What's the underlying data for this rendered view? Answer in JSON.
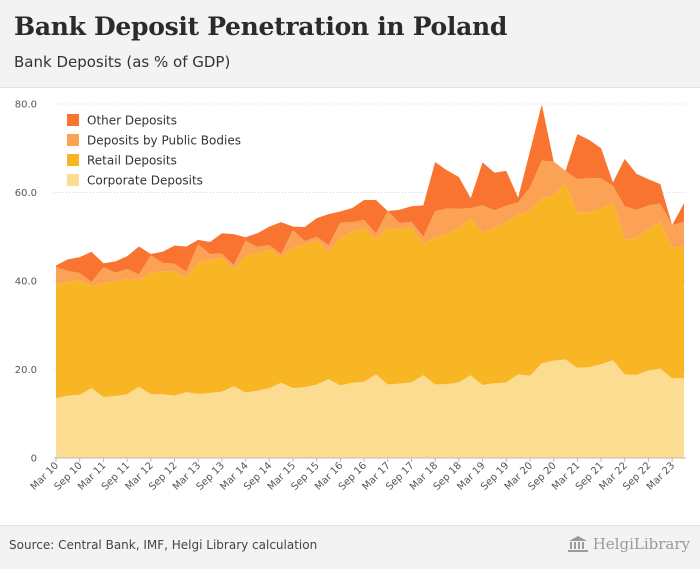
{
  "header": {
    "title": "Bank Deposit Penetration in Poland",
    "subtitle": "Bank Deposits (as % of GDP)"
  },
  "footer": {
    "source": "Source: Central Bank, IMF, Helgi Library calculation",
    "brand": "HelgiLibrary"
  },
  "colors": {
    "Other Deposits": "#f97430",
    "Deposits by Public Bodies": "#fba254",
    "Retail Deposits": "#f8b625",
    "Corporate Deposits": "#fcdc91"
  },
  "chart_data": {
    "type": "area",
    "stacked": true,
    "title": "",
    "xlabel": "",
    "ylabel": "",
    "ylim": [
      0,
      80
    ],
    "yticks": [
      "0",
      "20.0",
      "40.0",
      "60.0",
      "80.0"
    ],
    "grid": true,
    "legend_position": "top-left",
    "x_tick_labels": [
      "Mar 10",
      "Sep 10",
      "Mar 11",
      "Sep 11",
      "Mar 12",
      "Sep 12",
      "Mar 13",
      "Sep 13",
      "Mar 14",
      "Sep 14",
      "Mar 15",
      "Sep 15",
      "Mar 16",
      "Sep 16",
      "Mar 17",
      "Sep 17",
      "Mar 18",
      "Sep 18",
      "Mar 19",
      "Sep 19",
      "Mar 20",
      "Sep 20",
      "Mar 21",
      "Sep 21",
      "Mar 22",
      "Sep 22",
      "Mar 23"
    ],
    "x": [
      "Mar 10",
      "Jun 10",
      "Sep 10",
      "Dec 10",
      "Mar 11",
      "Jun 11",
      "Sep 11",
      "Dec 11",
      "Mar 12",
      "Jun 12",
      "Sep 12",
      "Dec 12",
      "Mar 13",
      "Jun 13",
      "Sep 13",
      "Dec 13",
      "Mar 14",
      "Jun 14",
      "Sep 14",
      "Dec 14",
      "Mar 15",
      "Jun 15",
      "Sep 15",
      "Dec 15",
      "Mar 16",
      "Jun 16",
      "Sep 16",
      "Dec 16",
      "Mar 17",
      "Jun 17",
      "Sep 17",
      "Dec 17",
      "Mar 18",
      "Jun 18",
      "Sep 18",
      "Dec 18",
      "Mar 19",
      "Jun 19",
      "Sep 19",
      "Dec 19",
      "Mar 20",
      "Jun 20",
      "Sep 20",
      "Dec 20",
      "Mar 21",
      "Jun 21",
      "Sep 21",
      "Dec 21",
      "Mar 22",
      "Jun 22",
      "Sep 22",
      "Dec 22",
      "Mar 23",
      "Jun 23"
    ],
    "series": [
      {
        "name": "Corporate Deposits",
        "values": [
          13.5,
          14.1,
          14.3,
          15.8,
          13.8,
          14.0,
          14.4,
          16.1,
          14.4,
          14.4,
          14.1,
          14.9,
          14.5,
          14.7,
          15.0,
          16.2,
          14.8,
          15.2,
          15.8,
          17.0,
          15.8,
          16.0,
          16.6,
          17.8,
          16.4,
          17.0,
          17.2,
          18.9,
          16.6,
          16.8,
          17.1,
          18.7,
          16.6,
          16.7,
          17.1,
          18.7,
          16.5,
          16.9,
          17.1,
          18.9,
          18.6,
          21.4,
          22.0,
          22.3,
          20.4,
          20.5,
          21.2,
          22.1,
          18.9,
          18.8,
          19.8,
          20.2,
          18.0,
          18.1
        ],
        "cumulative": [
          13.5,
          14.1,
          14.3,
          15.8,
          13.8,
          14.0,
          14.4,
          16.1,
          14.4,
          14.4,
          14.1,
          14.9,
          14.5,
          14.7,
          15.0,
          16.2,
          14.8,
          15.2,
          15.8,
          17.0,
          15.8,
          16.0,
          16.6,
          17.8,
          16.4,
          17.0,
          17.2,
          18.9,
          16.6,
          16.8,
          17.1,
          18.7,
          16.6,
          16.7,
          17.1,
          18.7,
          16.5,
          16.9,
          17.1,
          18.9,
          18.6,
          21.4,
          22.0,
          22.3,
          20.4,
          20.5,
          21.2,
          22.1,
          18.9,
          18.8,
          19.8,
          20.2,
          18.0,
          18.1
        ]
      },
      {
        "name": "Retail Deposits",
        "values": [
          25.6,
          25.8,
          25.9,
          23.0,
          25.7,
          25.9,
          26.0,
          24.1,
          27.5,
          27.8,
          28.0,
          25.9,
          29.6,
          30.0,
          30.4,
          26.4,
          30.8,
          31.1,
          31.4,
          28.4,
          31.7,
          32.2,
          32.6,
          28.7,
          33.4,
          34.1,
          34.8,
          30.5,
          35.4,
          35.0,
          35.1,
          29.7,
          33.1,
          34.0,
          35.0,
          35.4,
          34.4,
          35.1,
          36.3,
          36.1,
          37.3,
          37.2,
          37.4,
          39.8,
          35.1,
          35.0,
          35.2,
          35.6,
          30.5,
          30.9,
          31.9,
          33.1,
          29.6,
          29.7
        ],
        "cumulative": [
          39.1,
          39.9,
          40.2,
          38.8,
          39.5,
          39.9,
          40.4,
          40.2,
          41.9,
          42.2,
          42.1,
          40.8,
          44.1,
          44.7,
          45.4,
          42.6,
          45.6,
          46.3,
          47.2,
          45.4,
          47.5,
          48.2,
          49.2,
          46.5,
          49.8,
          51.1,
          52.0,
          49.4,
          52.0,
          51.8,
          52.2,
          48.4,
          49.7,
          50.7,
          52.1,
          54.1,
          50.9,
          52.0,
          53.4,
          55.0,
          55.9,
          58.6,
          59.4,
          62.1,
          55.5,
          55.5,
          56.4,
          57.7,
          49.4,
          49.7,
          51.7,
          53.3,
          47.6,
          47.8
        ]
      },
      {
        "name": "Deposits by Public Bodies",
        "values": [
          4.1,
          2.4,
          1.6,
          1.0,
          3.6,
          2.0,
          2.3,
          1.3,
          3.9,
          1.9,
          1.8,
          1.3,
          4.2,
          1.4,
          0.8,
          1.0,
          3.5,
          1.4,
          0.9,
          0.7,
          4.0,
          0.8,
          0.8,
          1.6,
          3.4,
          2.2,
          1.8,
          1.3,
          3.8,
          1.3,
          1.2,
          1.6,
          6.1,
          5.7,
          4.2,
          2.4,
          6.2,
          4.0,
          3.6,
          2.8,
          5.2,
          8.6,
          7.6,
          2.8,
          7.5,
          7.8,
          6.8,
          3.8,
          7.5,
          6.4,
          5.4,
          4.2,
          5.0,
          5.6
        ],
        "cumulative": [
          43.2,
          42.3,
          41.8,
          39.8,
          43.1,
          41.9,
          42.7,
          41.5,
          45.8,
          44.1,
          43.9,
          42.1,
          48.3,
          46.1,
          46.2,
          43.6,
          49.1,
          47.7,
          48.1,
          46.1,
          51.5,
          49.0,
          50.0,
          48.1,
          53.2,
          53.3,
          53.8,
          50.7,
          55.8,
          53.1,
          53.4,
          50.0,
          55.8,
          56.4,
          56.3,
          56.5,
          57.1,
          56.0,
          57.0,
          57.8,
          61.1,
          67.2,
          67.0,
          64.9,
          63.0,
          63.3,
          63.2,
          61.5,
          56.9,
          56.1,
          57.1,
          57.5,
          52.6,
          53.4
        ]
      },
      {
        "name": "Other Deposits",
        "values": [
          0.3,
          2.6,
          3.6,
          6.8,
          0.9,
          2.5,
          2.9,
          6.3,
          0.3,
          2.5,
          4.1,
          5.7,
          1.0,
          2.7,
          4.6,
          7.0,
          0.8,
          3.1,
          4.2,
          7.2,
          0.8,
          3.2,
          4.2,
          7.0,
          2.5,
          3.2,
          4.5,
          7.6,
          0.0,
          3.0,
          3.5,
          7.1,
          11.1,
          8.6,
          7.2,
          2.2,
          9.7,
          8.5,
          7.9,
          1.0,
          8.2,
          12.7,
          0.0,
          0.0,
          10.2,
          8.6,
          6.8,
          0.8,
          10.7,
          8.1,
          5.9,
          4.4,
          0.0,
          4.2
        ],
        "cumulative": [
          43.5,
          44.9,
          45.4,
          46.6,
          44.0,
          44.4,
          45.6,
          47.8,
          46.1,
          46.6,
          48.0,
          47.8,
          49.3,
          48.8,
          50.8,
          50.6,
          49.9,
          50.8,
          52.3,
          53.3,
          52.3,
          52.2,
          54.2,
          55.1,
          55.7,
          56.5,
          58.3,
          58.3,
          55.8,
          56.1,
          56.9,
          57.1,
          66.9,
          65.0,
          63.5,
          58.7,
          66.8,
          64.5,
          64.9,
          58.8,
          69.3,
          79.9,
          67.0,
          64.9,
          73.2,
          71.9,
          70.0,
          62.3,
          67.6,
          64.2,
          63.0,
          61.9,
          52.6,
          57.6
        ]
      }
    ]
  }
}
